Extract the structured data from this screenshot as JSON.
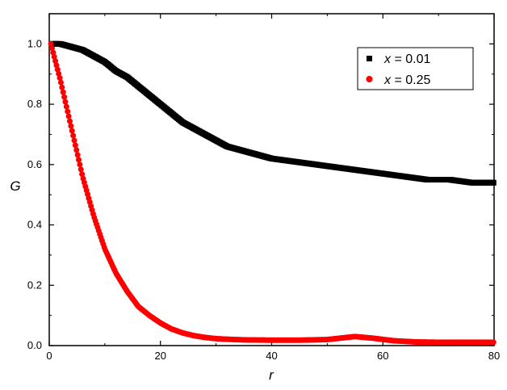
{
  "chart_data": {
    "type": "scatter",
    "title": "",
    "xlabel": "r",
    "ylabel": "G",
    "xlim": [
      0,
      80
    ],
    "ylim": [
      0,
      1.1
    ],
    "x_ticks": [
      "0",
      "20",
      "40",
      "60",
      "80"
    ],
    "y_ticks": [
      "0.0",
      "0.2",
      "0.4",
      "0.6",
      "0.8",
      "1.0"
    ],
    "grid": false,
    "legend_position": "top-right",
    "series": [
      {
        "name": "x = 0.01",
        "label_var": "x",
        "label_rest": " = 0.01",
        "marker": "square",
        "color": "#000000",
        "points": [
          [
            0.5,
            1.0
          ],
          [
            2,
            1.0
          ],
          [
            4,
            0.99
          ],
          [
            6,
            0.98
          ],
          [
            8,
            0.96
          ],
          [
            10,
            0.94
          ],
          [
            12,
            0.91
          ],
          [
            14,
            0.89
          ],
          [
            16,
            0.86
          ],
          [
            18,
            0.83
          ],
          [
            20,
            0.8
          ],
          [
            22,
            0.77
          ],
          [
            24,
            0.74
          ],
          [
            26,
            0.72
          ],
          [
            28,
            0.7
          ],
          [
            30,
            0.68
          ],
          [
            32,
            0.66
          ],
          [
            34,
            0.65
          ],
          [
            36,
            0.64
          ],
          [
            38,
            0.63
          ],
          [
            40,
            0.62
          ],
          [
            44,
            0.61
          ],
          [
            48,
            0.6
          ],
          [
            52,
            0.59
          ],
          [
            56,
            0.58
          ],
          [
            60,
            0.57
          ],
          [
            64,
            0.56
          ],
          [
            68,
            0.55
          ],
          [
            72,
            0.55
          ],
          [
            76,
            0.54
          ],
          [
            80,
            0.54
          ]
        ]
      },
      {
        "name": "x = 0.25",
        "label_var": "x",
        "label_rest": " = 0.25",
        "marker": "circle",
        "color": "#ff0000",
        "points": [
          [
            0.3,
            1.0
          ],
          [
            1,
            0.95
          ],
          [
            2,
            0.88
          ],
          [
            3,
            0.8
          ],
          [
            4,
            0.72
          ],
          [
            5,
            0.64
          ],
          [
            6,
            0.56
          ],
          [
            8,
            0.43
          ],
          [
            10,
            0.32
          ],
          [
            12,
            0.24
          ],
          [
            14,
            0.18
          ],
          [
            16,
            0.13
          ],
          [
            18,
            0.1
          ],
          [
            20,
            0.075
          ],
          [
            22,
            0.055
          ],
          [
            24,
            0.042
          ],
          [
            26,
            0.033
          ],
          [
            28,
            0.027
          ],
          [
            30,
            0.023
          ],
          [
            32,
            0.021
          ],
          [
            35,
            0.019
          ],
          [
            40,
            0.018
          ],
          [
            45,
            0.018
          ],
          [
            50,
            0.02
          ],
          [
            55,
            0.03
          ],
          [
            58,
            0.025
          ],
          [
            62,
            0.016
          ],
          [
            66,
            0.012
          ],
          [
            70,
            0.011
          ],
          [
            75,
            0.011
          ],
          [
            80,
            0.011
          ]
        ]
      }
    ]
  }
}
